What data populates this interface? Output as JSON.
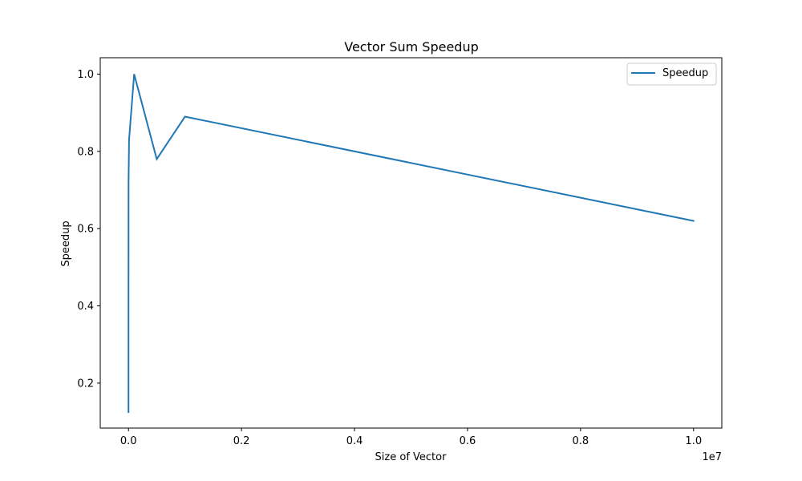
{
  "chart_data": {
    "type": "line",
    "title": "Vector Sum Speedup",
    "xlabel": "Size of Vector",
    "ylabel": "Speedup",
    "x_offset_text": "1e7",
    "x_scale_factor": 10000000,
    "xlim": [
      -500000,
      10500000
    ],
    "ylim": [
      0.0835,
      1.0425
    ],
    "grid": false,
    "legend": {
      "location": "upper right",
      "entries": [
        "Speedup"
      ]
    },
    "x_ticks": [
      {
        "value": 0,
        "label": "0.0"
      },
      {
        "value": 2000000,
        "label": "0.2"
      },
      {
        "value": 4000000,
        "label": "0.4"
      },
      {
        "value": 6000000,
        "label": "0.6"
      },
      {
        "value": 8000000,
        "label": "0.8"
      },
      {
        "value": 10000000,
        "label": "1.0"
      }
    ],
    "y_ticks": [
      {
        "value": 0.2,
        "label": "0.2"
      },
      {
        "value": 0.4,
        "label": "0.4"
      },
      {
        "value": 0.6,
        "label": "0.6"
      },
      {
        "value": 0.8,
        "label": "0.8"
      },
      {
        "value": 1.0,
        "label": "1.0"
      }
    ],
    "series": [
      {
        "name": "Speedup",
        "color": "#1f77b4",
        "x": [
          10,
          100,
          1000,
          10000,
          100000,
          500000,
          1000000,
          10000000
        ],
        "y": [
          0.125,
          0.45,
          0.72,
          0.83,
          1.0,
          0.78,
          0.89,
          0.62
        ]
      }
    ]
  }
}
